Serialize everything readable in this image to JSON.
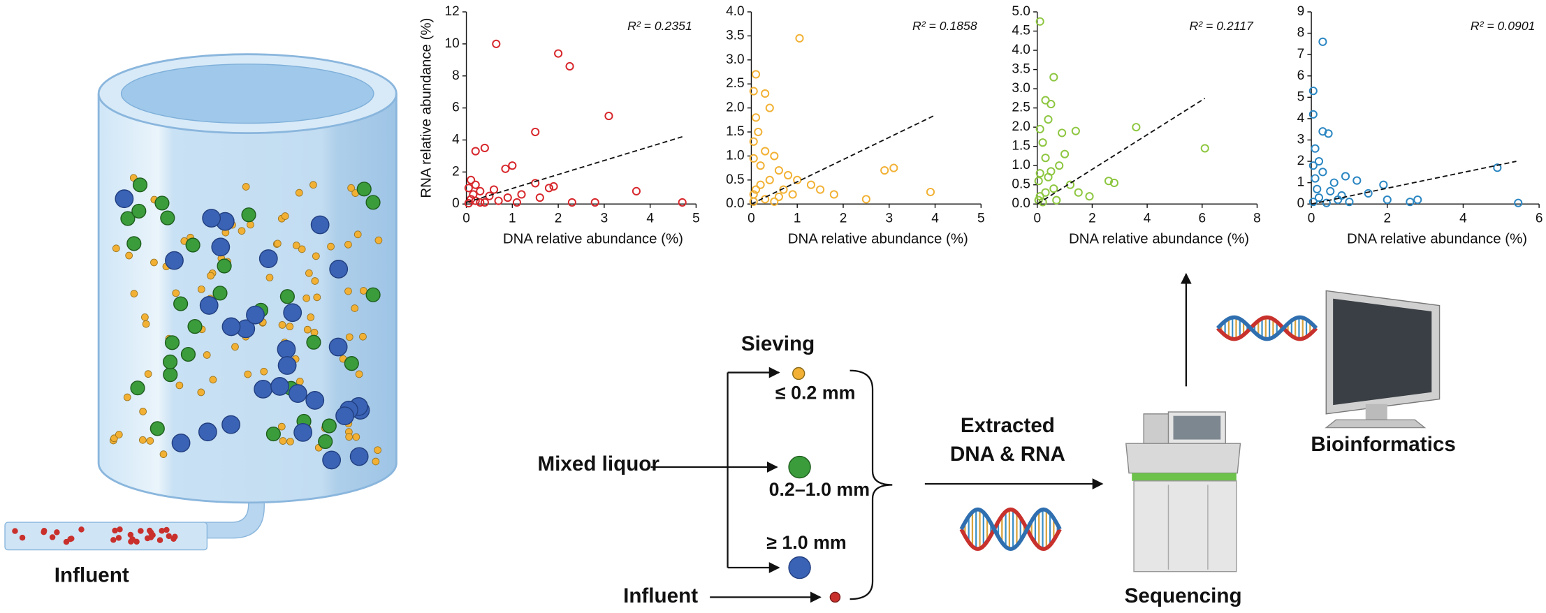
{
  "chart_data": [
    {
      "type": "scatter",
      "color": "#d7262b",
      "y_label": "RNA relative abundance (%)",
      "x_label": "DNA relative abundance (%)",
      "r_squared_label": "R² = 0.2351",
      "xlim": [
        0,
        5
      ],
      "xticks": [
        0,
        1,
        2,
        3,
        4,
        5
      ],
      "ylim": [
        0,
        12
      ],
      "yticks": [
        0,
        2,
        4,
        6,
        8,
        10,
        12
      ],
      "x": [
        0.65,
        2,
        2.25,
        3.1,
        1.5,
        0.4,
        0.2,
        3.7,
        4.7,
        2.8,
        2.3,
        1,
        0.85,
        1.9,
        1.8,
        1.5,
        1.2,
        0.1,
        0.2,
        0.3,
        0.5,
        0.1,
        0.2,
        0.3,
        0.05,
        0.6,
        0.9,
        1.1,
        0.4,
        0.15,
        0.7,
        1.6,
        0.05
      ],
      "values": [
        10,
        9.4,
        8.6,
        5.5,
        4.5,
        3.5,
        3.3,
        0.8,
        0.1,
        0.1,
        0.1,
        2.4,
        2.2,
        1.1,
        1,
        1.3,
        0.6,
        1.5,
        1.2,
        0.8,
        0.5,
        0.3,
        0.2,
        0.1,
        0.05,
        0.9,
        0.4,
        0.1,
        0.1,
        0.6,
        0.2,
        0.4,
        1
      ],
      "fit_line": {
        "x": [
          0,
          4.7
        ],
        "y": [
          0.1,
          4.2
        ]
      }
    },
    {
      "type": "scatter",
      "color": "#f2b134",
      "x_label": "DNA relative abundance (%)",
      "r_squared_label": "R² = 0.1858",
      "xlim": [
        0,
        5
      ],
      "xticks": [
        0,
        1,
        2,
        3,
        4,
        5
      ],
      "ylim": [
        0,
        4
      ],
      "yticks": [
        {
          "value": 0,
          "label": "0.0"
        },
        0.5,
        {
          "value": 1,
          "label": "1.0"
        },
        1.5,
        {
          "value": 2,
          "label": "2.0"
        },
        2.5,
        {
          "value": 3,
          "label": "3.0"
        },
        3.5,
        {
          "value": 4,
          "label": "4.0"
        }
      ],
      "x": [
        1.05,
        0.1,
        0.05,
        0.3,
        0.4,
        0.1,
        0.15,
        0.05,
        0.3,
        0.5,
        0.05,
        0.2,
        0.6,
        0.8,
        1.0,
        3.1,
        2.9,
        3.9,
        2.5,
        1.5,
        1.3,
        0.7,
        0.9,
        0.4,
        0.2,
        0.1,
        0.05,
        0.3,
        0.5,
        0.05,
        1.8,
        0.6
      ],
      "values": [
        3.45,
        2.7,
        2.35,
        2.3,
        2.0,
        1.8,
        1.5,
        1.3,
        1.1,
        1.0,
        0.95,
        0.8,
        0.7,
        0.6,
        0.5,
        0.75,
        0.7,
        0.25,
        0.1,
        0.3,
        0.4,
        0.3,
        0.2,
        0.5,
        0.4,
        0.3,
        0.2,
        0.1,
        0.05,
        0.05,
        0.2,
        0.15
      ],
      "fit_line": {
        "x": [
          0,
          4
        ],
        "y": [
          0,
          1.85
        ]
      }
    },
    {
      "type": "scatter",
      "color": "#8dc63f",
      "x_label": "DNA relative abundance (%)",
      "r_squared_label": "R² = 0.2117",
      "xlim": [
        0,
        8
      ],
      "xticks": [
        0,
        2,
        4,
        6,
        8
      ],
      "ylim": [
        0,
        5
      ],
      "yticks": [
        {
          "value": 0,
          "label": "0.0"
        },
        0.5,
        {
          "value": 1,
          "label": "1.0"
        },
        1.5,
        {
          "value": 2,
          "label": "2.0"
        },
        2.5,
        {
          "value": 3,
          "label": "3.0"
        },
        3.5,
        {
          "value": 4,
          "label": "4.0"
        },
        4.5,
        {
          "value": 5,
          "label": "5.0"
        }
      ],
      "x": [
        0.1,
        0.6,
        0.3,
        0.5,
        0.4,
        0.1,
        0.9,
        1.4,
        3.6,
        6.1,
        0.2,
        1.0,
        0.3,
        0.8,
        0.5,
        0.1,
        1.2,
        2.8,
        2.6,
        1.9,
        1.5,
        0.6,
        0.3,
        0.1,
        0.05,
        0.2,
        0.7,
        0.05,
        0.4
      ],
      "values": [
        4.75,
        3.3,
        2.7,
        2.6,
        2.2,
        1.95,
        1.85,
        1.9,
        2.0,
        1.45,
        1.6,
        1.3,
        1.2,
        1.0,
        0.85,
        0.8,
        0.5,
        0.55,
        0.6,
        0.2,
        0.3,
        0.4,
        0.3,
        0.2,
        0.1,
        0.05,
        0.1,
        0.6,
        0.7
      ],
      "fit_line": {
        "x": [
          0,
          6.1
        ],
        "y": [
          0,
          2.75
        ]
      }
    },
    {
      "type": "scatter",
      "color": "#2a86c2",
      "x_label": "DNA relative abundance (%)",
      "r_squared_label": "R² = 0.0901",
      "xlim": [
        0,
        6
      ],
      "xticks": [
        0,
        2,
        4,
        6
      ],
      "ylim": [
        0,
        9
      ],
      "yticks": [
        0,
        1,
        2,
        3,
        4,
        5,
        6,
        7,
        8,
        9
      ],
      "x": [
        0.3,
        0.05,
        0.05,
        0.3,
        0.45,
        0.1,
        0.2,
        0.9,
        1.2,
        1.9,
        4.9,
        0.6,
        0.05,
        0.3,
        0.1,
        0.5,
        0.8,
        1.5,
        2.0,
        2.6,
        2.8,
        5.45,
        0.2,
        0.05,
        0.4,
        1.0,
        0.15,
        0.7
      ],
      "values": [
        7.6,
        5.3,
        4.2,
        3.4,
        3.3,
        2.6,
        2.0,
        1.3,
        1.1,
        0.9,
        1.7,
        1.0,
        1.8,
        1.5,
        1.2,
        0.6,
        0.4,
        0.5,
        0.2,
        0.1,
        0.2,
        0.05,
        0.3,
        0.1,
        0.05,
        0.1,
        0.7,
        0.2
      ],
      "fit_line": {
        "x": [
          0,
          5.4
        ],
        "y": [
          0,
          2.0
        ]
      }
    }
  ],
  "diagram": {
    "pipe_label": "Influent",
    "sieving": "Sieving",
    "fractions": [
      "≤ 0.2 mm",
      "0.2–1.0 mm",
      "≥ 1.0 mm"
    ],
    "mixed_liquor": "Mixed liquor",
    "influent": "Influent",
    "extracted": [
      "Extracted",
      "DNA & RNA"
    ],
    "sequencing": "Sequencing",
    "bioinformatics": "Bioinformatics"
  }
}
